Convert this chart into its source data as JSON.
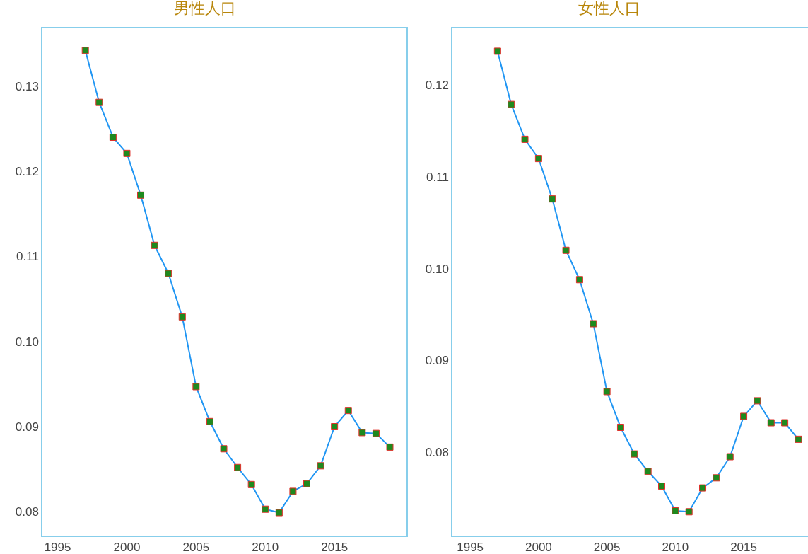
{
  "chart_data": [
    {
      "type": "line",
      "title": "男性人口",
      "x": [
        1997,
        1998,
        1999,
        2000,
        2001,
        2002,
        2003,
        2004,
        2005,
        2006,
        2007,
        2008,
        2009,
        2010,
        2011,
        2012,
        2013,
        2014,
        2015,
        2016,
        2017,
        2018,
        2019
      ],
      "series": [
        {
          "color": "#2196f3",
          "values": [
            0.1342,
            0.1281,
            0.124,
            0.1221,
            0.1172,
            0.1113,
            0.108,
            0.1029,
            0.0947,
            0.0906,
            0.0874,
            0.0852,
            0.0832,
            0.0803,
            0.0799,
            0.0824,
            0.0833,
            0.0854,
            0.09,
            0.0919,
            0.0893,
            0.0892,
            0.0876
          ]
        }
      ],
      "marker": "square",
      "grid": false,
      "xlim": [
        1993.9,
        2020.2
      ],
      "xticks": [
        1995,
        2000,
        2005,
        2010,
        2015
      ],
      "ylim": [
        0.0772,
        0.1368
      ],
      "yticks": [
        0.08,
        0.09,
        {
          "value": 0.1,
          "label": "0.10"
        },
        0.11,
        0.12,
        0.13
      ]
    },
    {
      "type": "line",
      "title": "女性人口",
      "x": [
        1997,
        1998,
        1999,
        2000,
        2001,
        2002,
        2003,
        2004,
        2005,
        2006,
        2007,
        2008,
        2009,
        2010,
        2011,
        2012,
        2013,
        2014,
        2015,
        2016,
        2017,
        2018,
        2019
      ],
      "series": [
        {
          "color": "#2196f3",
          "values": [
            0.1237,
            0.1179,
            0.1141,
            0.112,
            0.1076,
            0.102,
            0.0988,
            0.094,
            0.0866,
            0.0827,
            0.0798,
            0.0779,
            0.0763,
            0.0736,
            0.0735,
            0.0761,
            0.0772,
            0.0795,
            0.0839,
            0.0856,
            0.0832,
            0.0832,
            0.0814
          ]
        }
      ],
      "marker": "square",
      "grid": false,
      "xlim": [
        1993.7,
        2019.7
      ],
      "xticks": [
        1995,
        2000,
        2005,
        2010,
        2015
      ],
      "ylim": [
        0.0709,
        0.1262
      ],
      "yticks": [
        0.08,
        0.09,
        {
          "value": 0.1,
          "label": "0.10"
        },
        0.11,
        0.12
      ]
    }
  ]
}
